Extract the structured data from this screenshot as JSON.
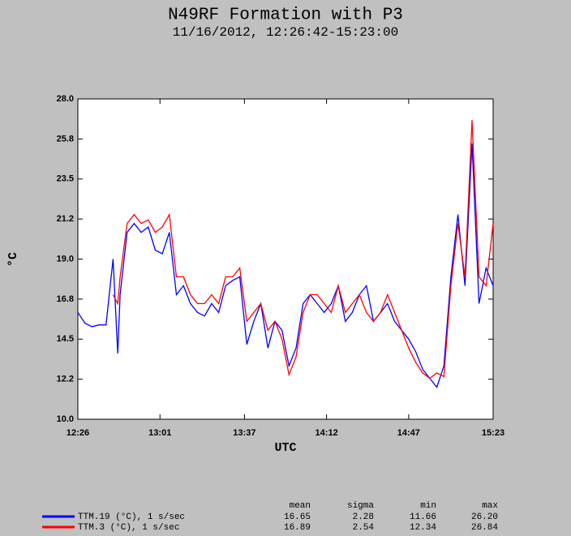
{
  "chart_data": {
    "type": "line",
    "title": "N49RF Formation with P3",
    "subtitle": "11/16/2012, 12:26:42-15:23:00",
    "x_label": "UTC",
    "y_label": "°C",
    "x": [
      746,
      749,
      752,
      755,
      758,
      761,
      763,
      764,
      767,
      770,
      773,
      776,
      779,
      782,
      785,
      788,
      791,
      794,
      797,
      800,
      803,
      806,
      809,
      812,
      815,
      818,
      821,
      824,
      827,
      830,
      833,
      836,
      839,
      842,
      845,
      848,
      851,
      854,
      857,
      860,
      863,
      866,
      869,
      872,
      875,
      878,
      881,
      884,
      887,
      890,
      893,
      896,
      899,
      902,
      905,
      908,
      911,
      914,
      917,
      920,
      923
    ],
    "series": [
      {
        "name": "TTM.19 (°C), 1 s/sec",
        "color": "#0000ff",
        "values": [
          16.0,
          15.4,
          15.2,
          15.3,
          15.3,
          19.0,
          13.7,
          17.0,
          20.5,
          21.0,
          20.5,
          20.8,
          19.5,
          19.3,
          20.5,
          17.0,
          17.5,
          16.5,
          16.0,
          15.8,
          16.5,
          16.0,
          17.5,
          17.8,
          18.0,
          14.2,
          15.5,
          16.5,
          14.0,
          15.5,
          15.0,
          13.0,
          14.0,
          16.5,
          17.0,
          16.5,
          16.0,
          16.5,
          17.5,
          15.5,
          16.0,
          17.0,
          17.5,
          15.5,
          16.0,
          16.5,
          15.5,
          15.0,
          14.5,
          13.8,
          12.8,
          12.3,
          11.8,
          13.0,
          18.0,
          21.5,
          17.5,
          25.5,
          16.5,
          18.5,
          17.5
        ]
      },
      {
        "name": "TTM.3 (°C), 1 s/sec",
        "color": "#ff0000",
        "values": [
          null,
          null,
          null,
          null,
          null,
          17.0,
          16.5,
          18.0,
          21.0,
          21.5,
          21.0,
          21.2,
          20.5,
          20.8,
          21.5,
          18.0,
          18.0,
          17.0,
          16.5,
          16.5,
          17.0,
          16.5,
          18.0,
          18.0,
          18.5,
          15.5,
          16.0,
          16.5,
          15.0,
          15.5,
          14.5,
          12.5,
          13.5,
          16.0,
          17.0,
          17.0,
          16.5,
          16.0,
          17.5,
          16.0,
          16.5,
          17.0,
          16.0,
          15.5,
          16.0,
          17.0,
          16.0,
          15.0,
          14.0,
          13.2,
          12.6,
          12.3,
          12.6,
          12.4,
          17.5,
          21.0,
          18.0,
          26.8,
          18.0,
          17.5,
          21.0
        ]
      }
    ],
    "xlim": [
      746,
      923
    ],
    "xticks": [
      {
        "value": 746,
        "label": "12:26"
      },
      {
        "value": 781,
        "label": "13:01"
      },
      {
        "value": 817,
        "label": "13:37"
      },
      {
        "value": 852,
        "label": "14:12"
      },
      {
        "value": 887,
        "label": "14:47"
      },
      {
        "value": 923,
        "label": "15:23"
      }
    ],
    "ylim": [
      10,
      28
    ],
    "yticks": [
      {
        "value": 10,
        "label": "10.0"
      },
      {
        "value": 12.25,
        "label": "12.2"
      },
      {
        "value": 14.5,
        "label": "14.5"
      },
      {
        "value": 16.75,
        "label": "16.8"
      },
      {
        "value": 19,
        "label": "19.0"
      },
      {
        "value": 21.25,
        "label": "21.2"
      },
      {
        "value": 23.5,
        "label": "23.5"
      },
      {
        "value": 25.75,
        "label": "25.8"
      },
      {
        "value": 28,
        "label": "28.0"
      }
    ],
    "stats_headers": [
      "mean",
      "sigma",
      "min",
      "max"
    ],
    "stats": [
      [
        "16.65",
        "2.28",
        "11.66",
        "26.20"
      ],
      [
        "16.89",
        "2.54",
        "12.34",
        "26.84"
      ]
    ]
  }
}
